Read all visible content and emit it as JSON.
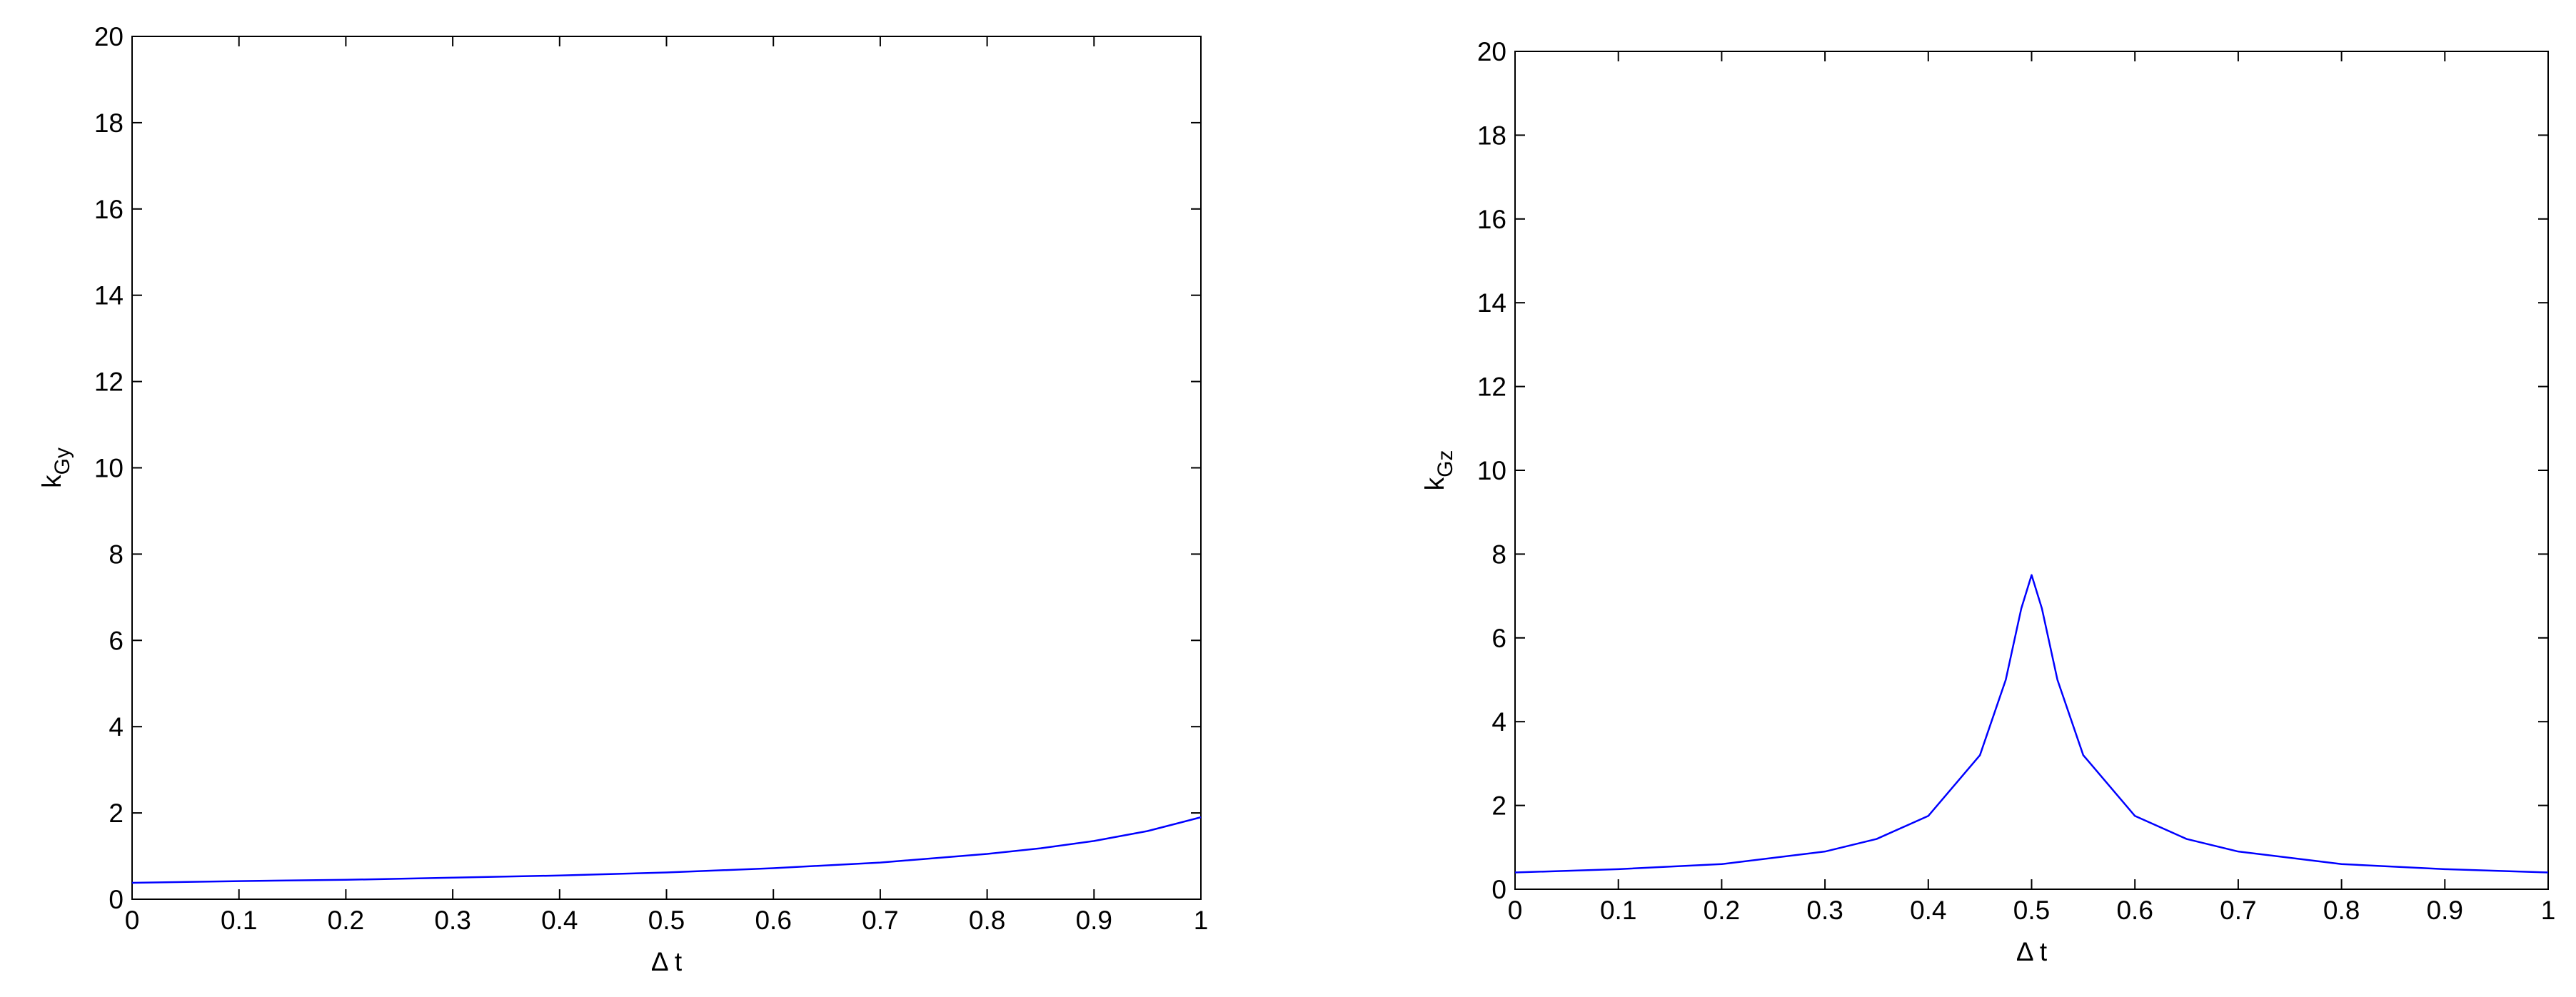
{
  "chart_data": [
    {
      "type": "line",
      "xlabel": "Δ t",
      "ylabel": "k",
      "ylabel_subscript": "Gy",
      "xlim": [
        0,
        1
      ],
      "ylim": [
        0,
        20
      ],
      "xticks": [
        0,
        0.1,
        0.2,
        0.3,
        0.4,
        0.5,
        0.6,
        0.7,
        0.8,
        0.9,
        1
      ],
      "yticks": [
        0,
        2,
        4,
        6,
        8,
        10,
        12,
        14,
        16,
        18,
        20
      ],
      "x": [
        0,
        0.1,
        0.2,
        0.3,
        0.4,
        0.5,
        0.6,
        0.7,
        0.8,
        0.85,
        0.9,
        0.95,
        1
      ],
      "series": [
        {
          "color": "#0000ff",
          "values": [
            0.38,
            0.42,
            0.45,
            0.5,
            0.55,
            0.62,
            0.72,
            0.85,
            1.05,
            1.18,
            1.35,
            1.58,
            1.9
          ]
        }
      ]
    },
    {
      "type": "line",
      "xlabel": "Δ t",
      "ylabel": "k",
      "ylabel_subscript": "Gz",
      "xlim": [
        0,
        1
      ],
      "ylim": [
        0,
        20
      ],
      "xticks": [
        0,
        0.1,
        0.2,
        0.3,
        0.4,
        0.5,
        0.6,
        0.7,
        0.8,
        0.9,
        1
      ],
      "yticks": [
        0,
        2,
        4,
        6,
        8,
        10,
        12,
        14,
        16,
        18,
        20
      ],
      "x": [
        0,
        0.1,
        0.2,
        0.3,
        0.35,
        0.4,
        0.45,
        0.475,
        0.49,
        0.5,
        0.51,
        0.525,
        0.55,
        0.6,
        0.65,
        0.7,
        0.8,
        0.9,
        1
      ],
      "series": [
        {
          "color": "#0000ff",
          "values": [
            0.4,
            0.48,
            0.6,
            0.9,
            1.2,
            1.75,
            3.2,
            5,
            6.7,
            7.5,
            6.7,
            5,
            3.2,
            1.75,
            1.2,
            0.9,
            0.6,
            0.48,
            0.4
          ]
        }
      ]
    }
  ]
}
